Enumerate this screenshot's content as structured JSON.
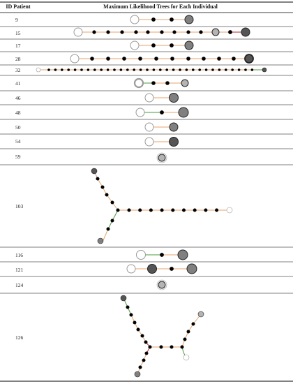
{
  "table": {
    "header_id": "ID Patient",
    "header_trees": "Maximum Likelihood Trees for Each Individual",
    "rows": [
      {
        "id": "9"
      },
      {
        "id": "15"
      },
      {
        "id": "17"
      },
      {
        "id": "28"
      },
      {
        "id": "32"
      },
      {
        "id": "41"
      },
      {
        "id": "46"
      },
      {
        "id": "48"
      },
      {
        "id": "50"
      },
      {
        "id": "54"
      },
      {
        "id": "59"
      },
      {
        "id": "103"
      },
      {
        "id": "116"
      },
      {
        "id": "121"
      },
      {
        "id": "124"
      },
      {
        "id": "126"
      }
    ]
  },
  "colors": {
    "edge_orange": "#e8a268",
    "edge_green": "#4a9a3c",
    "edge_red": "#b02a2a",
    "edge_pink": "#d890a0",
    "edge_grey": "#9a9a9a",
    "node_black": "#000000",
    "node_dark": "#555555",
    "node_mid": "#808080",
    "node_light": "#b4b4b4",
    "node_white": "#ffffff"
  }
}
